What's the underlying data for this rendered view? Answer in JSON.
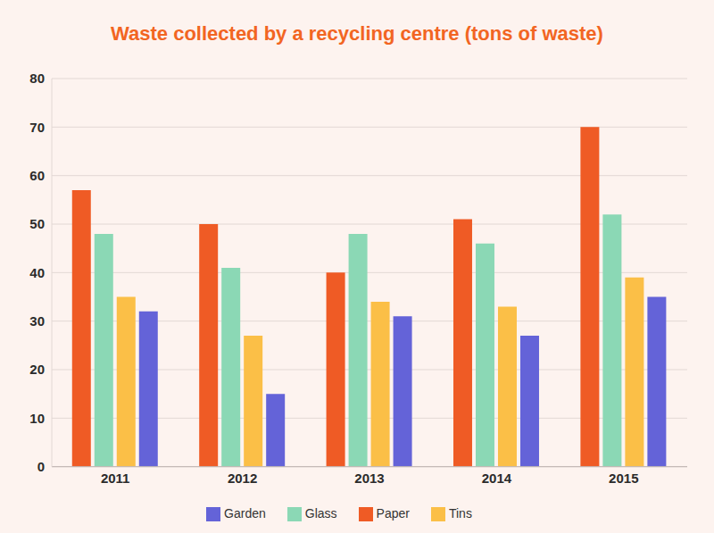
{
  "chart_data": {
    "type": "bar",
    "title": "Waste collected by a recycling centre (tons of waste)",
    "categories": [
      "2011",
      "2012",
      "2013",
      "2014",
      "2015"
    ],
    "series": [
      {
        "name": "Paper",
        "color": "#ef5b25",
        "values": [
          57,
          50,
          40,
          51,
          70
        ]
      },
      {
        "name": "Glass",
        "color": "#8bd8b5",
        "values": [
          48,
          41,
          48,
          46,
          52
        ]
      },
      {
        "name": "Tins",
        "color": "#fbbf47",
        "values": [
          35,
          27,
          34,
          33,
          39
        ]
      },
      {
        "name": "Garden",
        "color": "#6463d8",
        "values": [
          32,
          15,
          31,
          27,
          35
        ]
      }
    ],
    "ylim": [
      0,
      80
    ],
    "yticks": [
      0,
      10,
      20,
      30,
      40,
      50,
      60,
      70,
      80
    ],
    "grid": true,
    "legend": "bottom"
  }
}
